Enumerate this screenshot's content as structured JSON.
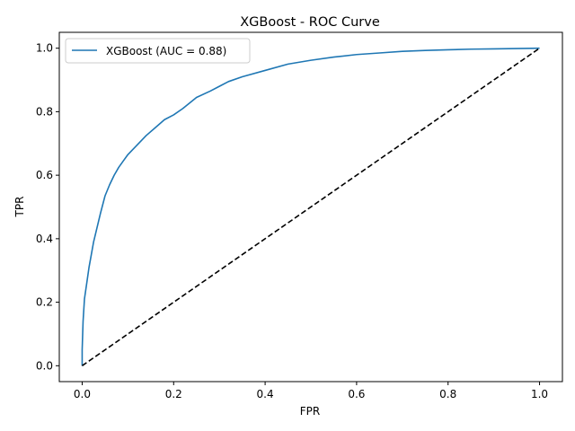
{
  "chart_data": {
    "type": "line",
    "title": "XGBoost - ROC Curve",
    "xlabel": "FPR",
    "ylabel": "TPR",
    "xlim": [
      -0.05,
      1.05
    ],
    "ylim": [
      -0.05,
      1.05
    ],
    "x_ticks": [
      0.0,
      0.2,
      0.4,
      0.6,
      0.8,
      1.0
    ],
    "y_ticks": [
      0.0,
      0.2,
      0.4,
      0.6,
      0.8,
      1.0
    ],
    "x_tick_labels": [
      "0.0",
      "0.2",
      "0.4",
      "0.6",
      "0.8",
      "1.0"
    ],
    "y_tick_labels": [
      "0.0",
      "0.2",
      "0.4",
      "0.6",
      "0.8",
      "1.0"
    ],
    "grid": false,
    "legend_position": "top-left",
    "series": [
      {
        "name": "XGBoost (AUC = 0.88)",
        "color": "#1f77b4",
        "style": "solid",
        "x": [
          0.0,
          0.0,
          0.002,
          0.005,
          0.01,
          0.015,
          0.02,
          0.025,
          0.03,
          0.04,
          0.05,
          0.06,
          0.07,
          0.08,
          0.09,
          0.1,
          0.12,
          0.14,
          0.16,
          0.18,
          0.2,
          0.22,
          0.25,
          0.28,
          0.3,
          0.32,
          0.35,
          0.4,
          0.45,
          0.5,
          0.55,
          0.6,
          0.65,
          0.7,
          0.75,
          0.8,
          0.85,
          0.9,
          0.95,
          1.0
        ],
        "y": [
          0.0,
          0.05,
          0.14,
          0.21,
          0.26,
          0.31,
          0.35,
          0.39,
          0.42,
          0.48,
          0.535,
          0.57,
          0.6,
          0.625,
          0.645,
          0.665,
          0.695,
          0.725,
          0.75,
          0.775,
          0.79,
          0.81,
          0.845,
          0.865,
          0.88,
          0.895,
          0.91,
          0.93,
          0.95,
          0.962,
          0.972,
          0.98,
          0.985,
          0.99,
          0.993,
          0.995,
          0.997,
          0.998,
          0.999,
          1.0
        ]
      },
      {
        "name": "",
        "color": "#000000",
        "style": "dashed",
        "x": [
          0.0,
          1.0
        ],
        "y": [
          0.0,
          1.0
        ]
      }
    ]
  }
}
